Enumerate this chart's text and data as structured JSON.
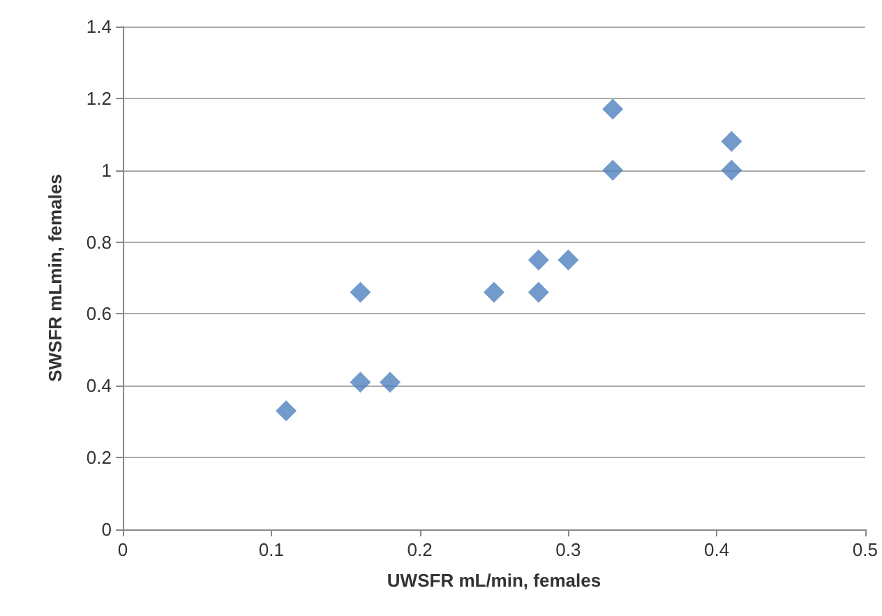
{
  "chart_data": {
    "type": "scatter",
    "xlabel": "UWSFR mL/min, females",
    "ylabel": "SWSFR mLmin, females",
    "x": [
      0.11,
      0.16,
      0.16,
      0.18,
      0.25,
      0.28,
      0.28,
      0.3,
      0.33,
      0.33,
      0.41,
      0.41
    ],
    "values": [
      0.33,
      0.41,
      0.66,
      0.41,
      0.66,
      0.66,
      0.75,
      0.75,
      1.0,
      1.17,
      1.0,
      1.08
    ],
    "color": "#4f81bd",
    "marker": "diamond",
    "xlim": [
      0,
      0.5
    ],
    "xticks": [
      0,
      0.1,
      0.2,
      0.3,
      0.4,
      0.5
    ],
    "ylim": [
      0,
      1.4
    ],
    "yticks": [
      0,
      0.2,
      0.4,
      0.6,
      0.8,
      1,
      1.2,
      1.4
    ],
    "grid": "y"
  }
}
